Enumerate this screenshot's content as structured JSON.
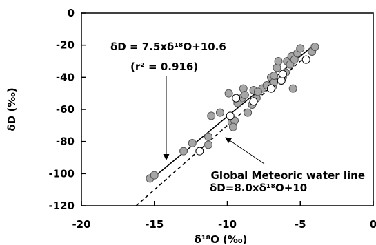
{
  "chart_data": {
    "type": "scatter",
    "xlabel": "δ¹⁸O (‰)",
    "ylabel": "δD (‰)",
    "xlim": [
      -20,
      0
    ],
    "ylim": [
      -120,
      0
    ],
    "x_ticks": [
      "-20",
      "-15",
      "-10",
      "-5",
      "0"
    ],
    "y_ticks": [
      "0",
      "-20",
      "-40",
      "-60",
      "-80",
      "-100",
      "-120"
    ],
    "grid": false,
    "series": [
      {
        "marker": "filled-gray-circle",
        "color": "#a6a6a6",
        "points": [
          [
            -15.3,
            -103
          ],
          [
            -15.0,
            -101
          ],
          [
            -13.0,
            -86
          ],
          [
            -12.4,
            -81
          ],
          [
            -11.3,
            -82
          ],
          [
            -11.3,
            -77
          ],
          [
            -11.1,
            -64
          ],
          [
            -10.5,
            -62
          ],
          [
            -9.9,
            -50
          ],
          [
            -9.7,
            -68
          ],
          [
            -9.5,
            -67
          ],
          [
            -9.6,
            -71
          ],
          [
            -9.0,
            -53
          ],
          [
            -8.9,
            -47
          ],
          [
            -8.8,
            -51
          ],
          [
            -8.6,
            -62
          ],
          [
            -8.3,
            -57
          ],
          [
            -8.2,
            -48
          ],
          [
            -8.0,
            -53
          ],
          [
            -7.6,
            -47
          ],
          [
            -7.3,
            -45
          ],
          [
            -7.0,
            -40
          ],
          [
            -6.9,
            -46
          ],
          [
            -6.8,
            -43
          ],
          [
            -6.6,
            -34
          ],
          [
            -6.5,
            -30
          ],
          [
            -6.2,
            -40
          ],
          [
            -6.0,
            -37
          ],
          [
            -5.9,
            -30
          ],
          [
            -5.7,
            -32
          ],
          [
            -5.6,
            -27
          ],
          [
            -5.5,
            -47
          ],
          [
            -5.4,
            -29
          ],
          [
            -5.2,
            -25
          ],
          [
            -5.0,
            -22
          ],
          [
            -4.2,
            -24
          ],
          [
            -4.0,
            -21
          ],
          [
            -6.8,
            -39
          ],
          [
            -7.9,
            -49
          ],
          [
            -9.3,
            -56
          ]
        ]
      },
      {
        "marker": "open-circle",
        "color": "#ffffff",
        "points": [
          [
            -11.9,
            -86
          ],
          [
            -9.8,
            -64
          ],
          [
            -9.4,
            -53
          ],
          [
            -8.2,
            -55
          ],
          [
            -7.0,
            -47
          ],
          [
            -6.3,
            -42
          ],
          [
            -6.2,
            -38
          ],
          [
            -4.6,
            -29
          ]
        ]
      }
    ],
    "lines": [
      {
        "name": "regression",
        "style": "solid",
        "slope": 7.5,
        "intercept": 10.6,
        "x_range": [
          -15.3,
          -3.9
        ]
      },
      {
        "name": "Global Meteoric water line",
        "style": "dashed",
        "slope": 8.0,
        "intercept": 10,
        "x_range": [
          -16.25,
          -3.75
        ]
      }
    ],
    "annotations": {
      "regression_eq": "δD = 7.5xδ¹⁸O+10.6",
      "r2": "(r² = 0.916)",
      "gmwl_name": "Global Meteoric water line",
      "gmwl_eq": "δD=8.0xδ¹⁸O+10"
    }
  }
}
